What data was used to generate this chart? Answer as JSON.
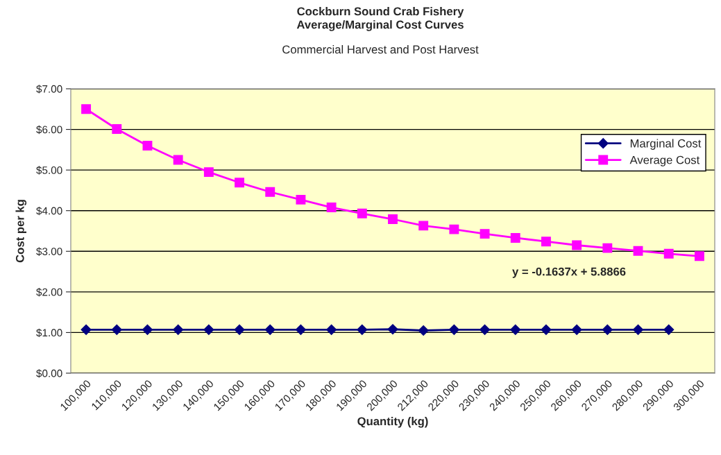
{
  "chart_data": {
    "type": "line",
    "title": "Cockburn Sound Crab Fishery\nAverage/Marginal Cost Curves",
    "subtitle": "Commercial Harvest and Post Harvest",
    "xlabel": "Quantity (kg)",
    "ylabel": "Cost per kg",
    "categories": [
      "100,000",
      "110,000",
      "120,000",
      "130,000",
      "140,000",
      "150,000",
      "160,000",
      "170,000",
      "180,000",
      "190,000",
      "200,000",
      "212,000",
      "220,000",
      "230,000",
      "240,000",
      "250,000",
      "260,000",
      "270,000",
      "280,000",
      "290,000",
      "300,000"
    ],
    "series": [
      {
        "name": "Marginal Cost",
        "color": "#000080",
        "marker": "diamond",
        "values": [
          1.07,
          1.07,
          1.07,
          1.07,
          1.07,
          1.07,
          1.07,
          1.07,
          1.07,
          1.07,
          1.08,
          1.05,
          1.07,
          1.07,
          1.07,
          1.07,
          1.07,
          1.07,
          1.07,
          1.07,
          null
        ]
      },
      {
        "name": "Average Cost",
        "color": "#ff00ff",
        "marker": "square",
        "values": [
          6.5,
          6.01,
          5.6,
          5.25,
          4.95,
          4.69,
          4.46,
          4.27,
          4.08,
          3.93,
          3.79,
          3.63,
          3.54,
          3.43,
          3.33,
          3.24,
          3.15,
          3.08,
          3.01,
          2.94,
          2.88
        ]
      }
    ],
    "annotations": [
      "y = -0.1637x + 5.8866"
    ],
    "ylim": [
      0,
      7
    ],
    "yticks": [
      {
        "value": 0,
        "label": "$0.00"
      },
      {
        "value": 1,
        "label": "$1.00"
      },
      {
        "value": 2,
        "label": "$2.00"
      },
      {
        "value": 3,
        "label": "$3.00"
      },
      {
        "value": 4,
        "label": "$4.00"
      },
      {
        "value": 5,
        "label": "$5.00"
      },
      {
        "value": 6,
        "label": "$6.00"
      },
      {
        "value": 7,
        "label": "$7.00"
      }
    ],
    "grid": "y",
    "legend": "top right"
  }
}
